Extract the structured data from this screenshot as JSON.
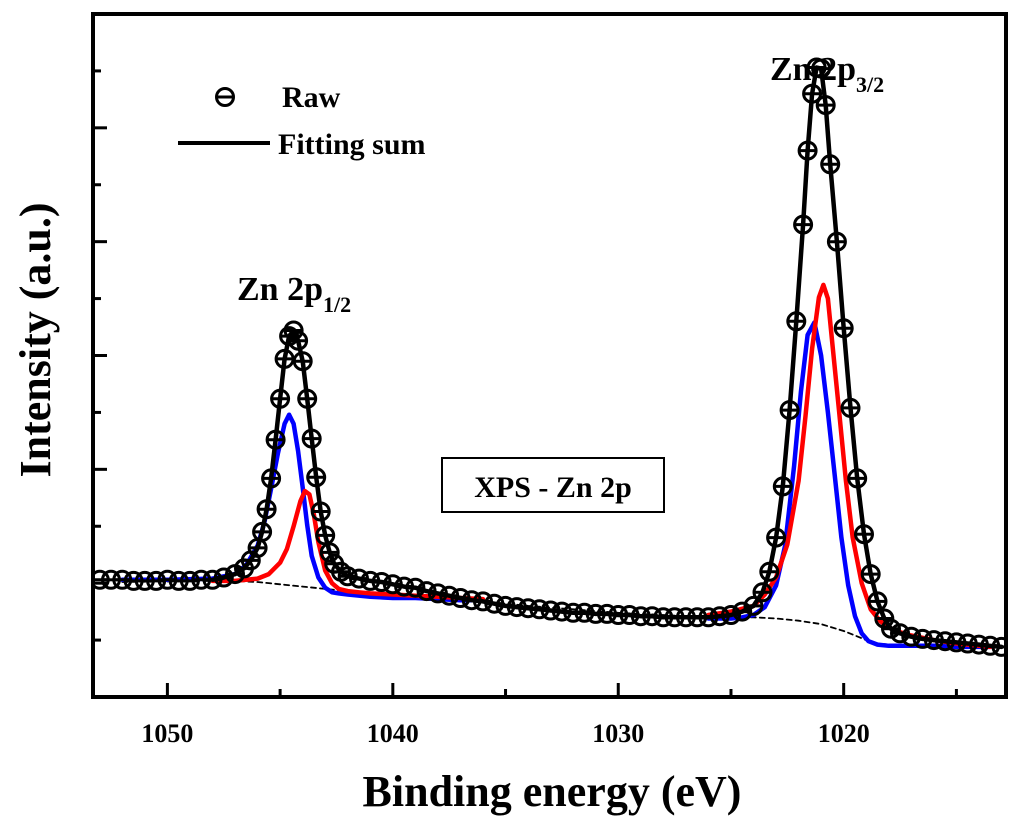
{
  "chart_data": {
    "type": "line",
    "title": "",
    "xlabel": "Binding energy (eV)",
    "ylabel": "Intensity (a.u.)",
    "x_reversed": true,
    "xlim": [
      1053.3,
      1012.8
    ],
    "ylim": [
      0,
      600
    ],
    "x_ticks": [
      1050,
      1040,
      1030,
      1020
    ],
    "x_tick_labels": [
      "1050",
      "1040",
      "1030",
      "1020"
    ],
    "y_ticks_labeled": false,
    "grid": false,
    "legend": {
      "position": "top-left",
      "entries": [
        {
          "label": "Raw",
          "marker": "circle-minus",
          "color": "#000000"
        },
        {
          "label": "Fitting sum",
          "marker": "line",
          "color": "#000000"
        }
      ]
    },
    "annotations": [
      {
        "text": "Zn 2p",
        "sub": "1/2",
        "x": 1043.8,
        "y": 380
      },
      {
        "text": "Zn 2p",
        "sub": "3/2",
        "x": 1019.0,
        "y": 580
      },
      {
        "text": "XPS - Zn 2p",
        "x": 1030.5,
        "y": 195,
        "boxed": true
      }
    ],
    "series": [
      {
        "name": "Raw",
        "style": "markers",
        "color": "#000000",
        "x": [
          1053.0,
          1052.5,
          1052.0,
          1051.5,
          1051.0,
          1050.5,
          1050.0,
          1049.5,
          1049.0,
          1048.5,
          1048.0,
          1047.5,
          1047.0,
          1046.6,
          1046.3,
          1046.0,
          1045.8,
          1045.6,
          1045.4,
          1045.2,
          1045.0,
          1044.8,
          1044.6,
          1044.4,
          1044.2,
          1044.0,
          1043.8,
          1043.6,
          1043.4,
          1043.2,
          1043.0,
          1042.8,
          1042.6,
          1042.3,
          1042.0,
          1041.5,
          1041.0,
          1040.5,
          1040.0,
          1039.5,
          1039.0,
          1038.5,
          1038.0,
          1037.5,
          1037.0,
          1036.5,
          1036.0,
          1035.5,
          1035.0,
          1034.5,
          1034.0,
          1033.5,
          1033.0,
          1032.5,
          1032.0,
          1031.5,
          1031.0,
          1030.5,
          1030.0,
          1029.5,
          1029.0,
          1028.5,
          1028.0,
          1027.5,
          1027.0,
          1026.5,
          1026.0,
          1025.5,
          1025.0,
          1024.5,
          1024.0,
          1023.6,
          1023.3,
          1023.0,
          1022.7,
          1022.4,
          1022.1,
          1021.8,
          1021.6,
          1021.4,
          1021.2,
          1021.0,
          1020.8,
          1020.6,
          1020.3,
          1020.0,
          1019.7,
          1019.4,
          1019.1,
          1018.8,
          1018.5,
          1018.2,
          1017.9,
          1017.5,
          1017.0,
          1016.5,
          1016.0,
          1015.5,
          1015.0,
          1014.5,
          1014.0,
          1013.5,
          1013.0
        ],
        "y": [
          103,
          103,
          103,
          102,
          102,
          102,
          103,
          102,
          102,
          103,
          103,
          105,
          108,
          113,
          120,
          131,
          145,
          165,
          192,
          226,
          262,
          297,
          317,
          322,
          313,
          295,
          262,
          227,
          193,
          163,
          142,
          127,
          117,
          110,
          106,
          104,
          102,
          101,
          99,
          97,
          96,
          93,
          91,
          89,
          87,
          85,
          84,
          82,
          80,
          79,
          78,
          77,
          76,
          75,
          74,
          74,
          73,
          73,
          72,
          72,
          71,
          71,
          70,
          70,
          70,
          70,
          70,
          71,
          72,
          75,
          80,
          92,
          110,
          140,
          185,
          252,
          330,
          415,
          480,
          530,
          553,
          552,
          520,
          468,
          400,
          324,
          254,
          192,
          143,
          108,
          84,
          69,
          60,
          56,
          53,
          51,
          50,
          49,
          48,
          47,
          46,
          45,
          44
        ]
      },
      {
        "name": "Fitting sum",
        "style": "line",
        "color": "#000000",
        "x": [
          1048.0,
          1047.5,
          1047.0,
          1046.6,
          1046.3,
          1046.0,
          1045.8,
          1045.6,
          1045.4,
          1045.2,
          1045.0,
          1044.8,
          1044.6,
          1044.4,
          1044.2,
          1044.0,
          1043.8,
          1043.6,
          1043.4,
          1043.2,
          1043.0,
          1042.8,
          1042.6,
          1042.3,
          1042.0,
          1041.5,
          1041.0,
          1040.5,
          1040.0,
          1039.5,
          1039.0,
          1038.5,
          1038.0,
          1037.5,
          1037.0,
          1036.5,
          1036.0,
          1035.5,
          1035.0,
          1034.5,
          1034.0,
          1033.5,
          1033.0,
          1032.5,
          1032.0,
          1031.5,
          1031.0,
          1030.5,
          1030.0,
          1029.5,
          1029.0,
          1028.5,
          1028.0,
          1027.5,
          1027.0,
          1026.5,
          1026.0,
          1025.5,
          1025.0,
          1024.5,
          1024.0,
          1023.6,
          1023.3,
          1023.0,
          1022.7,
          1022.4,
          1022.1,
          1021.8,
          1021.6,
          1021.4,
          1021.2,
          1021.0,
          1020.8,
          1020.6,
          1020.3,
          1020.0,
          1019.7,
          1019.4,
          1019.1,
          1018.8,
          1018.5,
          1018.2,
          1017.9,
          1017.5,
          1017.0,
          1016.5,
          1016.0,
          1015.5,
          1015.0,
          1014.5,
          1014.0,
          1013.5,
          1013.0
        ],
        "y": [
          103,
          105,
          108,
          113,
          120,
          131,
          145,
          165,
          192,
          226,
          262,
          297,
          317,
          322,
          313,
          295,
          262,
          227,
          193,
          163,
          142,
          127,
          117,
          110,
          106,
          104,
          102,
          101,
          99,
          97,
          96,
          93,
          91,
          89,
          87,
          85,
          84,
          82,
          80,
          79,
          78,
          77,
          76,
          75,
          74,
          74,
          73,
          73,
          72,
          72,
          71,
          71,
          70,
          70,
          70,
          70,
          70,
          71,
          72,
          75,
          80,
          92,
          110,
          140,
          185,
          252,
          330,
          415,
          480,
          530,
          553,
          552,
          520,
          468,
          400,
          324,
          254,
          192,
          143,
          108,
          84,
          69,
          60,
          56,
          53,
          51,
          50,
          49,
          48,
          47,
          46,
          45,
          44
        ]
      },
      {
        "name": "",
        "style": "line",
        "color": "#0000ff",
        "x": [
          1052.0,
          1050.0,
          1048.0,
          1047.0,
          1046.5,
          1046.0,
          1045.7,
          1045.4,
          1045.1,
          1044.8,
          1044.6,
          1044.4,
          1044.2,
          1044.0,
          1043.8,
          1043.6,
          1043.3,
          1043.0,
          1042.7,
          1042.4,
          1042.0,
          1041.5,
          1041.0,
          1040.0,
          1039.0,
          1038.0,
          1037.0,
          1036.0
        ],
        "y": [
          103,
          103,
          104,
          108,
          116,
          133,
          153,
          183,
          214,
          240,
          248,
          240,
          216,
          184,
          151,
          124,
          105,
          96,
          92,
          91,
          90,
          89,
          88,
          87,
          87,
          86,
          85,
          85
        ]
      },
      {
        "name": "",
        "style": "line",
        "color": "#ff0000",
        "x": [
          1048.0,
          1047.0,
          1046.0,
          1045.5,
          1045.0,
          1044.7,
          1044.4,
          1044.1,
          1043.9,
          1043.7,
          1043.5,
          1043.3,
          1043.0,
          1042.7,
          1042.4,
          1042.0,
          1041.5,
          1041.0,
          1040.0,
          1039.0,
          1038.0,
          1037.0,
          1036.0
        ],
        "y": [
          102,
          102,
          104,
          108,
          118,
          130,
          150,
          172,
          181,
          178,
          160,
          136,
          111,
          100,
          95,
          93,
          92,
          91,
          90,
          89,
          88,
          87,
          86
        ]
      },
      {
        "name": "",
        "style": "line",
        "color": "#0000ff",
        "x": [
          1026.0,
          1025.0,
          1024.5,
          1024.0,
          1023.5,
          1023.0,
          1022.6,
          1022.2,
          1021.9,
          1021.6,
          1021.3,
          1021.0,
          1020.7,
          1020.4,
          1020.1,
          1019.8,
          1019.5,
          1019.2,
          1018.9,
          1018.5,
          1018.0,
          1017.0,
          1016.0,
          1015.0,
          1014.0,
          1013.5
        ],
        "y": [
          69,
          69,
          70,
          72,
          79,
          98,
          133,
          203,
          268,
          318,
          329,
          300,
          250,
          195,
          140,
          98,
          71,
          56,
          49,
          46,
          45,
          45,
          45,
          44,
          44,
          44
        ]
      },
      {
        "name": "",
        "style": "line",
        "color": "#ff0000",
        "x": [
          1026.0,
          1025.0,
          1024.0,
          1023.5,
          1023.0,
          1022.5,
          1022.0,
          1021.7,
          1021.4,
          1021.1,
          1020.9,
          1020.7,
          1020.5,
          1020.2,
          1019.9,
          1019.6,
          1019.2,
          1018.8,
          1018.4,
          1018.0,
          1017.5,
          1017.0,
          1016.0,
          1015.0,
          1014.0,
          1013.5
        ],
        "y": [
          72,
          75,
          80,
          90,
          105,
          134,
          190,
          246,
          306,
          351,
          362,
          350,
          310,
          250,
          190,
          140,
          100,
          77,
          67,
          61,
          57,
          54,
          50,
          47,
          45,
          44
        ]
      },
      {
        "name": "",
        "style": "dashed",
        "color": "#000000",
        "x": [
          1052.0,
          1048.0,
          1047.0,
          1046.0,
          1045.0,
          1044.0,
          1043.0,
          1042.0,
          1041.0,
          1040.0,
          1038.0,
          1036.0,
          1034.0,
          1032.0,
          1030.0,
          1028.0,
          1026.0,
          1025.0,
          1024.0,
          1023.0,
          1022.0,
          1021.0,
          1020.0,
          1019.5,
          1019.0,
          1018.5,
          1018.0,
          1017.0,
          1016.0,
          1015.0,
          1014.0,
          1013.0
        ],
        "y": [
          101,
          102,
          102,
          101,
          99,
          97,
          95,
          93,
          91,
          89,
          87,
          84,
          80,
          77,
          74,
          72,
          70,
          70,
          70,
          69,
          67,
          64,
          58,
          54,
          50,
          47,
          46,
          45,
          45,
          44,
          44,
          43
        ]
      }
    ]
  }
}
